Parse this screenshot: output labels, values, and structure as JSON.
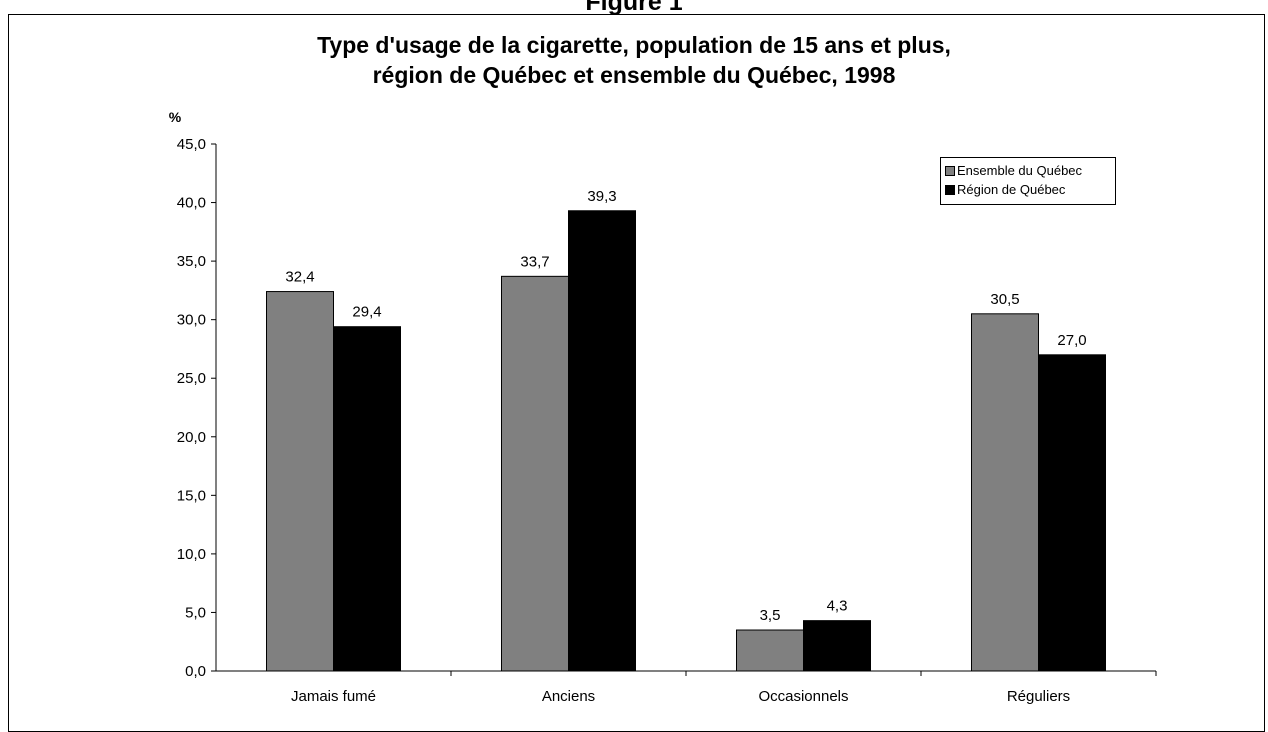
{
  "figure_label": "Figure 1",
  "chart_data": {
    "type": "bar",
    "title": "Type d'usage de la cigarette, population de 15 ans et plus,",
    "subtitle": "région de Québec et ensemble du Québec, 1998",
    "ylabel": "%",
    "xlabel": "",
    "ylim": [
      0,
      45
    ],
    "yticks": [
      "0,0",
      "5,0",
      "10,0",
      "15,0",
      "20,0",
      "25,0",
      "30,0",
      "35,0",
      "40,0",
      "45,0"
    ],
    "categories": [
      "Jamais fumé",
      "Anciens",
      "Occasionnels",
      "Réguliers"
    ],
    "series": [
      {
        "name": "Ensemble du Québec",
        "color": "#808080",
        "values": [
          32.4,
          33.7,
          3.5,
          30.5
        ],
        "labels": [
          "32,4",
          "33,7",
          "3,5",
          "30,5"
        ]
      },
      {
        "name": "Région de Québec",
        "color": "#000000",
        "values": [
          29.4,
          39.3,
          4.3,
          27.0
        ],
        "labels": [
          "29,4",
          "39,3",
          "4,3",
          "27,0"
        ]
      }
    ],
    "grid": false,
    "legend_position": "top-right"
  }
}
